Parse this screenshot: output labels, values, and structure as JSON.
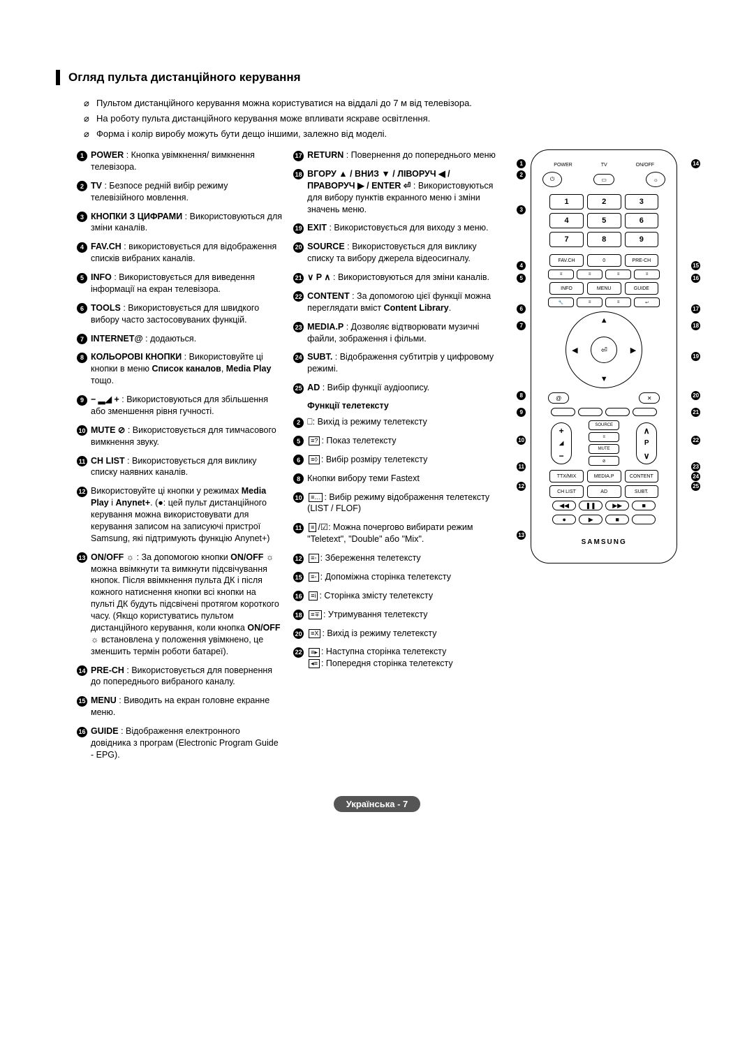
{
  "header": {
    "title": "Огляд пульта дистанційного керування"
  },
  "notes": [
    "Пультом дистанційного керування можна користуватися на віддалі до 7 м від телевізора.",
    "На роботу пульта дистанційного керування може впливати яскраве освітлення.",
    "Форма і колір виробу можуть бути дещо іншими, залежно від моделі."
  ],
  "left": [
    {
      "n": "1",
      "html": "<b>POWER</b> : Кнопка увімкнення/ вимкнення телевізора."
    },
    {
      "n": "2",
      "html": "<b>TV</b> : Безпосе редній вибір режиму телевізійного мовлення."
    },
    {
      "n": "3",
      "html": "<b>КНОПКИ З ЦИФРАМИ</b> : Використовуються для зміни каналів."
    },
    {
      "n": "4",
      "html": "<b>FAV.CH</b> : використовується для відображення списків вибраних каналів."
    },
    {
      "n": "5",
      "html": "<b>INFO</b> : Використовується для виведення інформації на екран телевізора."
    },
    {
      "n": "6",
      "html": "<b>TOOLS</b> : Використовується для швидкого вибору часто застосовуваних функцій."
    },
    {
      "n": "7",
      "html": "<b>INTERNET@</b> : додаються."
    },
    {
      "n": "8",
      "html": "<b>КОЛЬОРОВІ КНОПКИ</b> : Використовуйте ці кнопки в меню <b>Список каналов</b>, <b>Media Play</b> тощо."
    },
    {
      "n": "9",
      "html": "<b>− ▂◢ +</b> : Використовуються для збільшення або зменшення рівня гучності."
    },
    {
      "n": "10",
      "html": "<b>MUTE ⊘</b> : Використовується для тимчасового вимкнення звуку."
    },
    {
      "n": "11",
      "html": "<b>CH LIST</b> : Використовується для виклику списку наявних каналів."
    },
    {
      "n": "12",
      "html": "Використовуйте ці кнопки у режимах <b>Media Play</b> і <b>Anynet+</b>. (●: цей пульт дистанційного керування можна використовувати для керування записом на записуючі пристрої Samsung, які підтримують функцію Anynet+)"
    },
    {
      "n": "13",
      "html": "<b>ON/OFF ☼</b> : За допомогою кнопки <b>ON/OFF ☼</b> можна ввімкнути та вимкнути підсвічування кнопок. Після ввімкнення пульта ДК і після кожного натиснення кнопки всі кнопки на пульті ДК будуть підсвічені протягом короткого часу. (Якщо користуватись пультом дистанційного керування, коли кнопка <b>ON/OFF ☼</b> встановлена у положення увімкнено, це зменшить термін роботи батареї)."
    },
    {
      "n": "14",
      "html": "<b>PRE-CH</b> : Використовується для повернення до попереднього вибраного каналу."
    },
    {
      "n": "15",
      "html": "<b>MENU</b> : Виводить на екран головне екранне меню."
    },
    {
      "n": "16",
      "html": "<b>GUIDE</b> : Відображення електронного довідника з програм (Electronic Program Guide - EPG)."
    }
  ],
  "mid": [
    {
      "n": "17",
      "html": "<b>RETURN</b> : Повернення до попереднього меню"
    },
    {
      "n": "18",
      "html": "<b>ВГОРУ ▲ / ВНИЗ ▼ / ЛІВОРУЧ ◀ / ПРАВОРУЧ ▶ / ENTER ⏎</b> : Використовуються для вибору пунктів екранного меню і зміни значень меню."
    },
    {
      "n": "19",
      "html": "<b>EXIT</b> : Використовується для виходу з меню."
    },
    {
      "n": "20",
      "html": "<b>SOURCE</b> : Використовується для виклику списку та вибору джерела відеосигналу."
    },
    {
      "n": "21",
      "html": "<b>∨ P ∧</b> : Використовуються для зміни каналів."
    },
    {
      "n": "22",
      "html": "<b>CONTENT</b> : За допомогою цієї функції можна переглядати вміст <b>Content Library</b>."
    },
    {
      "n": "23",
      "html": "<b>MEDIA.P</b> : Дозволяє відтворювати музичні файли, зображення і фільми."
    },
    {
      "n": "24",
      "html": "<b>SUBT.</b> : Відображення субтитрів у цифровому режимі."
    },
    {
      "n": "25",
      "html": "<b>AD</b> : Вибір функції аудіоопису."
    }
  ],
  "teletext_heading": "Функції телетексту",
  "teletext": [
    {
      "n": "2",
      "html": "⎕: Вихід із режиму телетексту"
    },
    {
      "n": "5",
      "html": "<span class='ttx-icon'>≡?</span>: Показ телетексту"
    },
    {
      "n": "6",
      "html": "<span class='ttx-icon'>≡◊</span>: Вибір розміру телетексту"
    },
    {
      "n": "8",
      "html": "Кнопки вибору теми Fastext"
    },
    {
      "n": "10",
      "html": "<span class='ttx-icon'>≡…</span>: Вибір режиму відображення телетексту (LIST / FLOF)"
    },
    {
      "n": "11",
      "html": "<span class='ttx-icon'>≡</span>/☑: Можна почергово вибирати режим \"Teletext\", \"Double\" або \"Mix\"."
    },
    {
      "n": "12",
      "html": "<span class='ttx-icon'>≡◦</span>: Збереження телетексту"
    },
    {
      "n": "15",
      "html": "<span class='ttx-icon'>≡◦</span>: Допоміжна сторінка телетексту"
    },
    {
      "n": "16",
      "html": "<span class='ttx-icon'>≡i</span>: Сторінка змісту телетексту"
    },
    {
      "n": "18",
      "html": "<span class='ttx-icon'>≡∓</span>: Утримування телетексту"
    },
    {
      "n": "20",
      "html": "<span class='ttx-icon'>≡X</span>: Вихід із режиму телетексту"
    },
    {
      "n": "22",
      "html": "<span class='ttx-icon'>≡▸</span>: Наступна сторінка телетексту<br><span class='ttx-icon'>◂≡</span>: Попередня сторінка телетексту"
    }
  ],
  "remote": {
    "top_labels": [
      "POWER",
      "TV",
      "ON/OFF"
    ],
    "keypad": [
      "1",
      "2",
      "3",
      "4",
      "5",
      "6",
      "7",
      "8",
      "9"
    ],
    "row_favch": [
      "FAV.CH",
      "0",
      "PRE-CH"
    ],
    "row_info": [
      "INFO",
      "MENU",
      "GUIDE"
    ],
    "source_label": "SOURCE",
    "mute_label": "MUTE",
    "row_media": [
      "TTX/MIX",
      "MEDIA.P",
      "CONTENT"
    ],
    "row_chlist": [
      "CH LIST",
      "AD",
      "SUBT."
    ],
    "vol": {
      "up": "+",
      "down": "−"
    },
    "ch": {
      "up": "∧",
      "down": "∨",
      "label": "P"
    },
    "brand": "SAMSUNG"
  },
  "callouts_left": [
    "1",
    "2",
    "3",
    "4",
    "5",
    "6",
    "7",
    "8",
    "9",
    "10",
    "11",
    "12",
    "13"
  ],
  "callouts_right": [
    "14",
    "15",
    "16",
    "17",
    "18",
    "19",
    "20",
    "21",
    "22",
    "23",
    "24",
    "25"
  ],
  "footer": "Українська - 7"
}
